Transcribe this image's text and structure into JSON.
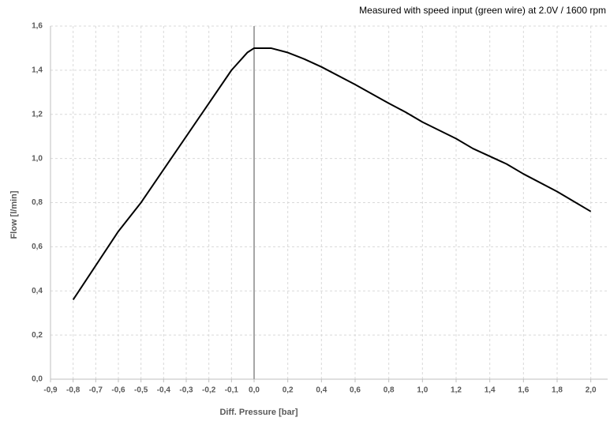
{
  "chart_data": {
    "type": "line",
    "title": "Measured with speed input (green wire) at 2.0V / 1600 rpm",
    "x_label": "Diff. Pressure [bar]",
    "y_label": "Flow [l/min]",
    "x": [
      -0.8,
      -0.6,
      -0.5,
      -0.4,
      -0.3,
      -0.2,
      -0.1,
      -0.03,
      0.0,
      0.1,
      0.2,
      0.3,
      0.4,
      0.6,
      0.8,
      0.9,
      1.0,
      1.2,
      1.3,
      1.5,
      1.6,
      1.8,
      1.9,
      2.0
    ],
    "series": [
      {
        "name": "Flow",
        "color": "#000000",
        "values": [
          0.36,
          0.67,
          0.8,
          0.95,
          1.1,
          1.25,
          1.4,
          1.48,
          1.5,
          1.5,
          1.48,
          1.45,
          1.415,
          1.335,
          1.25,
          1.21,
          1.165,
          1.09,
          1.045,
          0.975,
          0.93,
          0.85,
          0.805,
          0.76
        ]
      }
    ],
    "xlim": [
      -0.9,
      2.1
    ],
    "ylim": [
      0,
      1.6
    ],
    "xticks": [
      {
        "value": -0.9,
        "label": "-0,9"
      },
      {
        "value": -0.8,
        "label": "-0,8"
      },
      {
        "value": -0.7,
        "label": "-0,7"
      },
      {
        "value": -0.6,
        "label": "-0,6"
      },
      {
        "value": -0.5,
        "label": "-0,5"
      },
      {
        "value": -0.4,
        "label": "-0,4"
      },
      {
        "value": -0.3,
        "label": "-0,3"
      },
      {
        "value": -0.2,
        "label": "-0,2"
      },
      {
        "value": -0.1,
        "label": "-0,1"
      },
      {
        "value": 0,
        "label": "0,0"
      },
      {
        "value": 0.2,
        "label": "0,2"
      },
      {
        "value": 0.4,
        "label": "0,4"
      },
      {
        "value": 0.6,
        "label": "0,6"
      },
      {
        "value": 0.8,
        "label": "0,8"
      },
      {
        "value": 1.0,
        "label": "1,0"
      },
      {
        "value": 1.2,
        "label": "1,2"
      },
      {
        "value": 1.4,
        "label": "1,4"
      },
      {
        "value": 1.6,
        "label": "1,6"
      },
      {
        "value": 1.8,
        "label": "1,8"
      },
      {
        "value": 2.0,
        "label": "2,0"
      }
    ],
    "yticks": [
      {
        "value": 0,
        "label": "0,0"
      },
      {
        "value": 0.2,
        "label": "0,2"
      },
      {
        "value": 0.4,
        "label": "0,4"
      },
      {
        "value": 0.6,
        "label": "0,6"
      },
      {
        "value": 0.8,
        "label": "0,8"
      },
      {
        "value": 1.0,
        "label": "1,0"
      },
      {
        "value": 1.2,
        "label": "1,2"
      },
      {
        "value": 1.4,
        "label": "1,4"
      },
      {
        "value": 1.6,
        "label": "1,6"
      }
    ],
    "grid": true
  }
}
